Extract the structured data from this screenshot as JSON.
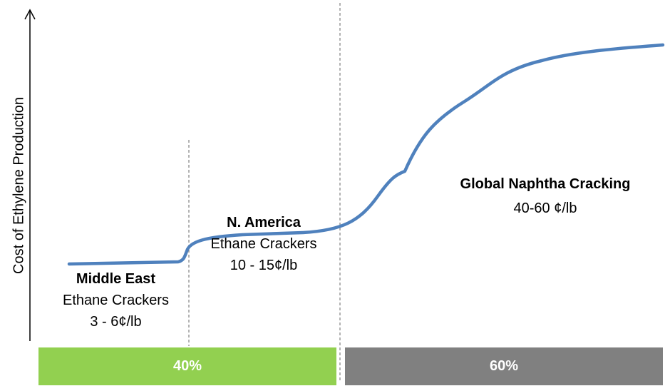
{
  "chart_data": {
    "type": "line",
    "ylabel": "Cost of Ethylene Production",
    "xlabel": "",
    "regions": [
      {
        "name": "Middle East",
        "detail": "Ethane Crackers",
        "cost": "3 - 6¢/lb"
      },
      {
        "name": "N. America",
        "detail": "Ethane Crackers",
        "cost": "10 - 15¢/lb"
      },
      {
        "name": "Global Naphtha Cracking",
        "cost": "40-60 ¢/lb"
      }
    ],
    "capacity_share": [
      {
        "label": "40%",
        "value": 40,
        "color": "#92d050"
      },
      {
        "label": "60%",
        "value": 60,
        "color": "#808080"
      }
    ],
    "curve_color": "#4f81bd"
  }
}
